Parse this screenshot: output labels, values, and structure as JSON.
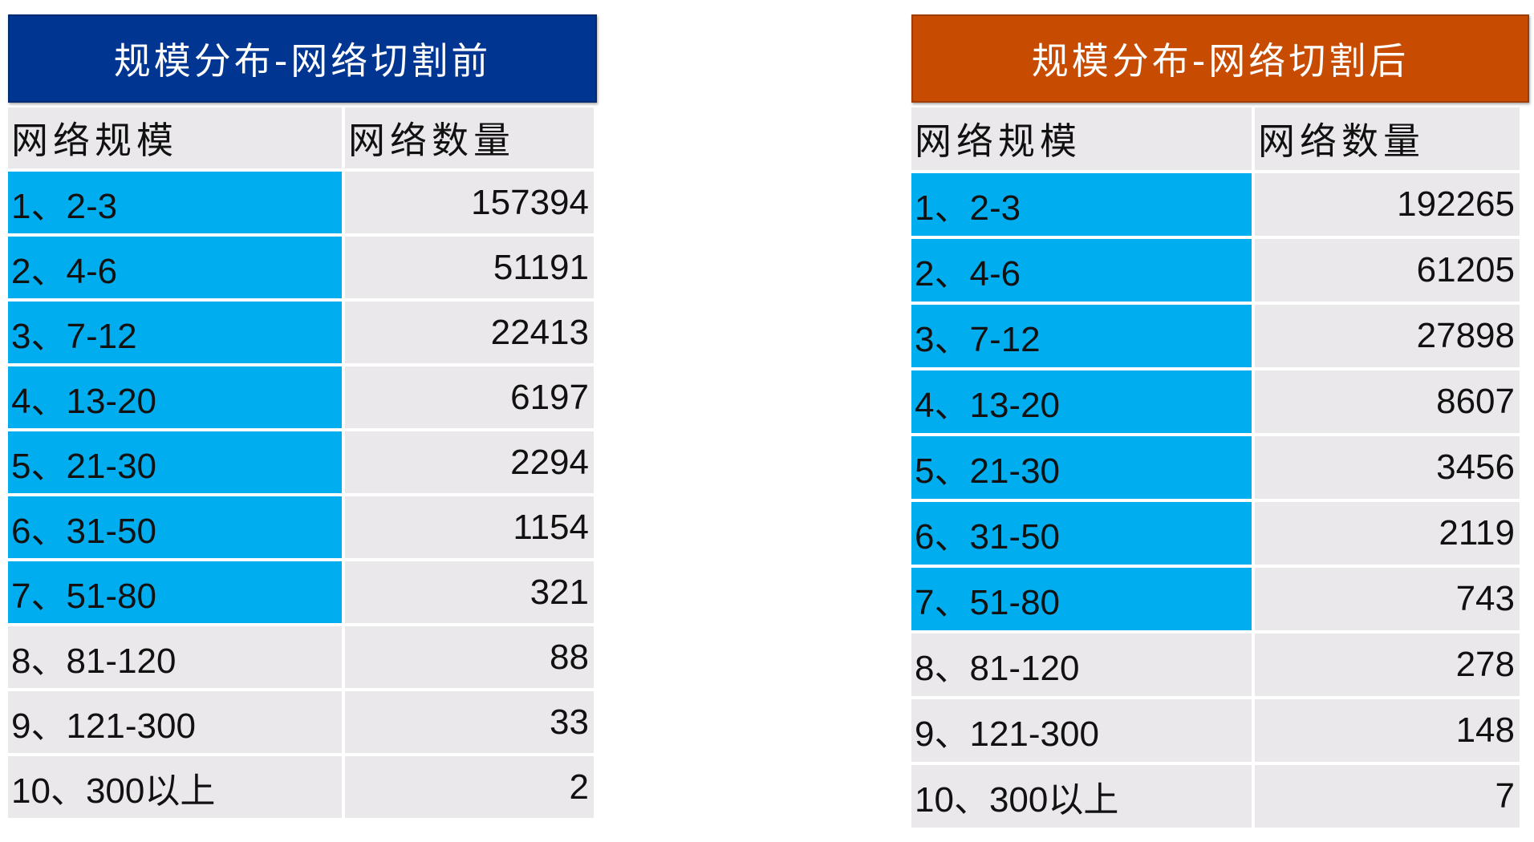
{
  "before": {
    "title": "规模分布-网络切割前",
    "header_color": "#003591",
    "columns": [
      "网络规模",
      "网络数量"
    ],
    "highlight_color": "#00aeef",
    "rows": [
      {
        "size": "1、2-3",
        "count": "157394",
        "highlight": true
      },
      {
        "size": "2、4-6",
        "count": "51191",
        "highlight": true
      },
      {
        "size": "3、7-12",
        "count": "22413",
        "highlight": true
      },
      {
        "size": "4、13-20",
        "count": "6197",
        "highlight": true
      },
      {
        "size": "5、21-30",
        "count": "2294",
        "highlight": true
      },
      {
        "size": "6、31-50",
        "count": "1154",
        "highlight": true
      },
      {
        "size": "7、51-80",
        "count": "321",
        "highlight": true
      },
      {
        "size": "8、81-120",
        "count": "88",
        "highlight": false
      },
      {
        "size": "9、121-300",
        "count": "33",
        "highlight": false
      },
      {
        "size": "10、300以上",
        "count": "2",
        "highlight": false
      }
    ]
  },
  "after": {
    "title": "规模分布-网络切割后",
    "header_color": "#c74b00",
    "columns": [
      "网络规模",
      "网络数量"
    ],
    "highlight_color": "#00aeef",
    "rows": [
      {
        "size": "1、2-3",
        "count": "192265",
        "highlight": true
      },
      {
        "size": "2、4-6",
        "count": "61205",
        "highlight": true
      },
      {
        "size": "3、7-12",
        "count": "27898",
        "highlight": true
      },
      {
        "size": "4、13-20",
        "count": "8607",
        "highlight": true
      },
      {
        "size": "5、21-30",
        "count": "3456",
        "highlight": true
      },
      {
        "size": "6、31-50",
        "count": "2119",
        "highlight": true
      },
      {
        "size": "7、51-80",
        "count": "743",
        "highlight": true
      },
      {
        "size": "8、81-120",
        "count": "278",
        "highlight": false
      },
      {
        "size": "9、121-300",
        "count": "148",
        "highlight": false
      },
      {
        "size": "10、300以上",
        "count": "7",
        "highlight": false
      }
    ]
  }
}
